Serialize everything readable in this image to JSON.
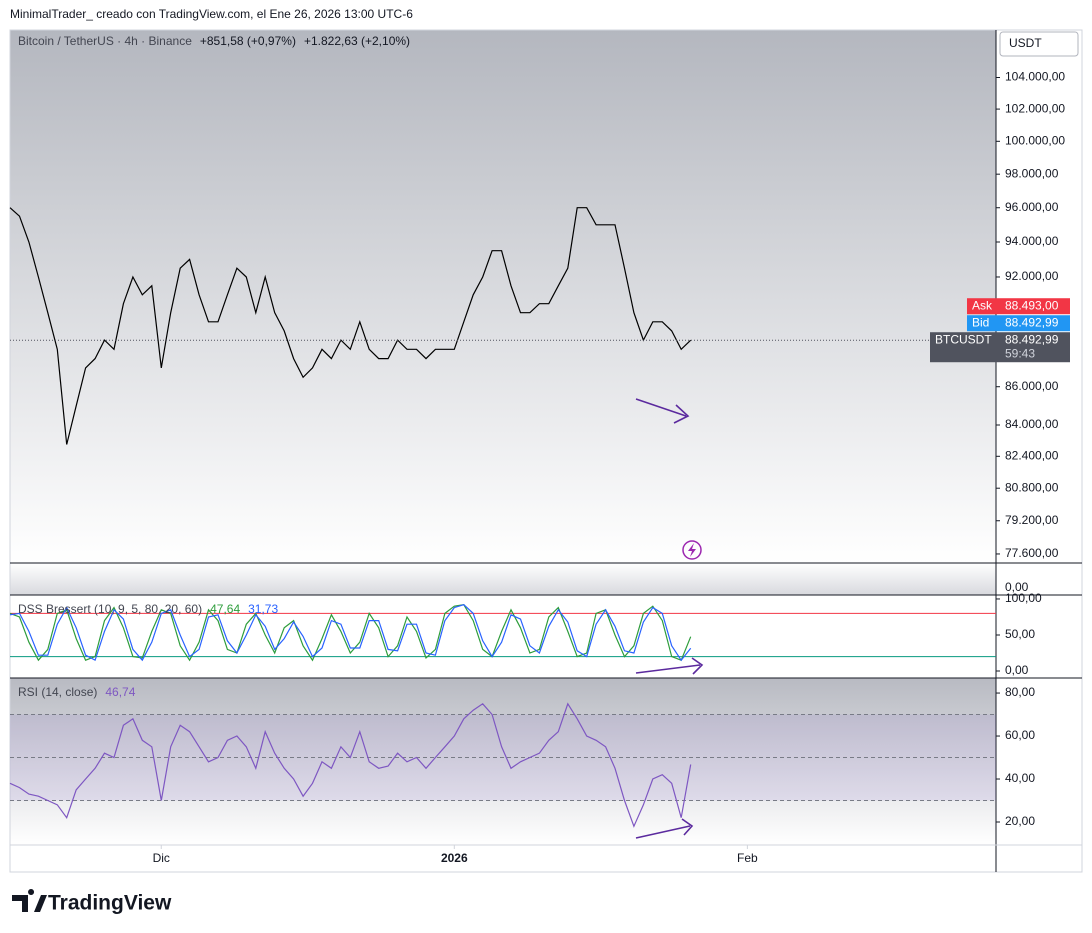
{
  "header": {
    "credit": "MinimalTrader_ creado con TradingView.com, el Ene 26, 2026 13:00 UTC-6",
    "symbol": "Bitcoin / TetherUS · 4h · Binance",
    "change_1": "+851,58 (+0,97%)",
    "change_2": "+1.822,63 (+2,10%)",
    "currency": "USDT"
  },
  "empty_pane_tick": "0,00",
  "footer": {
    "logo": "TradingView"
  },
  "chart_data": [
    {
      "type": "line",
      "log": true,
      "color": "#000000",
      "values": [
        96000,
        95500,
        94000,
        92000,
        90000,
        88000,
        83000,
        85000,
        87000,
        87500,
        88500,
        88000,
        90500,
        92000,
        91000,
        91500,
        87000,
        90000,
        92500,
        93000,
        91000,
        89500,
        89500,
        91000,
        92500,
        92000,
        90000,
        92000,
        90000,
        89000,
        87500,
        86500,
        87000,
        88000,
        87500,
        88500,
        88000,
        89500,
        88000,
        87500,
        87500,
        88500,
        88000,
        88000,
        87500,
        88000,
        88000,
        88000,
        89500,
        91000,
        92000,
        93500,
        93500,
        91500,
        90000,
        90000,
        90500,
        90500,
        91500,
        92500,
        96000,
        96000,
        95000,
        95000,
        95000,
        92500,
        90000,
        88500,
        89500,
        89500,
        89000,
        88000,
        88493
      ],
      "xlim": [
        0,
        104.3
      ],
      "xticks": [
        {
          "value": 16,
          "label": "Dic"
        },
        {
          "value": 47,
          "label": "2026"
        },
        {
          "value": 78,
          "label": "Feb"
        }
      ],
      "ylim": [
        77170,
        107080
      ],
      "yticks": [
        {
          "value": 104000,
          "label": "104.000,00"
        },
        {
          "value": 102000,
          "label": "102.000,00"
        },
        {
          "value": 100000,
          "label": "100.000,00"
        },
        {
          "value": 98000,
          "label": "98.000,00"
        },
        {
          "value": 96000,
          "label": "96.000,00"
        },
        {
          "value": 94000,
          "label": "94.000,00"
        },
        {
          "value": 92000,
          "label": "92.000,00"
        },
        {
          "value": 86000,
          "label": "86.000,00"
        },
        {
          "value": 84000,
          "label": "84.000,00"
        },
        {
          "value": 82400,
          "label": "82.400,00"
        },
        {
          "value": 80800,
          "label": "80.800,00"
        },
        {
          "value": 79200,
          "label": "79.200,00"
        },
        {
          "value": 77600,
          "label": "77.600,00"
        }
      ],
      "price_labels": [
        {
          "name": "Ask",
          "value": 88493,
          "label": "88.493,00",
          "color": "#f23645"
        },
        {
          "name": "Bid",
          "value": 88492.99,
          "label": "88.492,99",
          "color": "#2196f3"
        },
        {
          "name": "BTCUSDT",
          "value": 88492.99,
          "label": "88.492,99",
          "countdown": "59:43",
          "color": "#50535e"
        }
      ]
    },
    {
      "type": "line",
      "title": "DSS Bressert (10, 9, 5, 80, 20, 60)",
      "series": [
        {
          "name": "DSS",
          "color": "#2e9d3c",
          "last_label": "47,64",
          "values": [
            80,
            75,
            40,
            15,
            30,
            80,
            85,
            45,
            15,
            20,
            70,
            88,
            60,
            20,
            18,
            55,
            85,
            80,
            35,
            15,
            40,
            85,
            70,
            30,
            25,
            65,
            80,
            50,
            25,
            60,
            70,
            35,
            15,
            45,
            78,
            55,
            25,
            40,
            80,
            60,
            20,
            35,
            75,
            55,
            18,
            30,
            80,
            90,
            92,
            70,
            30,
            20,
            55,
            85,
            60,
            25,
            30,
            75,
            88,
            55,
            20,
            25,
            80,
            85,
            50,
            20,
            35,
            80,
            90,
            70,
            20,
            15,
            47.64
          ]
        },
        {
          "name": "Signal",
          "color": "#2962ff",
          "last_label": "31,73",
          "values": [
            78,
            80,
            55,
            22,
            22,
            65,
            88,
            60,
            22,
            15,
            55,
            85,
            72,
            30,
            15,
            40,
            80,
            85,
            50,
            20,
            30,
            75,
            78,
            42,
            25,
            50,
            78,
            62,
            30,
            45,
            68,
            48,
            20,
            32,
            70,
            65,
            32,
            32,
            70,
            70,
            30,
            28,
            65,
            65,
            25,
            22,
            70,
            88,
            92,
            80,
            42,
            20,
            40,
            78,
            72,
            35,
            25,
            62,
            85,
            68,
            28,
            20,
            65,
            85,
            62,
            28,
            25,
            68,
            88,
            80,
            35,
            15,
            31.73
          ]
        }
      ],
      "levels": [
        {
          "value": 80,
          "color": "#f23645"
        },
        {
          "value": 20,
          "color": "#089981"
        }
      ],
      "xlim": [
        0,
        104.3
      ],
      "ylim": [
        -9.7,
        105.5
      ],
      "yticks": [
        {
          "value": 100,
          "label": "100,00"
        },
        {
          "value": 50,
          "label": "50,00"
        },
        {
          "value": 0,
          "label": "0,00"
        }
      ]
    },
    {
      "type": "line",
      "title": "RSI (14, close)",
      "series": [
        {
          "name": "RSI",
          "color": "#7e57c2",
          "last_label": "46,74",
          "values": [
            38,
            36,
            33,
            32,
            30,
            28,
            22,
            35,
            40,
            45,
            52,
            50,
            65,
            68,
            58,
            55,
            30,
            55,
            65,
            62,
            55,
            48,
            50,
            58,
            60,
            55,
            45,
            62,
            52,
            45,
            40,
            32,
            38,
            48,
            45,
            55,
            50,
            62,
            48,
            45,
            46,
            52,
            48,
            50,
            45,
            50,
            55,
            60,
            68,
            72,
            75,
            70,
            55,
            45,
            48,
            50,
            52,
            58,
            62,
            75,
            68,
            60,
            58,
            55,
            45,
            30,
            18,
            28,
            40,
            42,
            38,
            22,
            46.74
          ]
        }
      ],
      "levels": [
        {
          "value": 70,
          "color": "#787b86"
        },
        {
          "value": 50,
          "color": "#787b86"
        },
        {
          "value": 30,
          "color": "#787b86"
        }
      ],
      "band": [
        30,
        70
      ],
      "band_color": "#7e57c2",
      "xlim": [
        0,
        104.3
      ],
      "ylim": [
        9.3,
        87
      ],
      "yticks": [
        {
          "value": 80,
          "label": "80,00"
        },
        {
          "value": 60,
          "label": "60,00"
        },
        {
          "value": 40,
          "label": "40,00"
        },
        {
          "value": 20,
          "label": "20,00"
        }
      ]
    }
  ]
}
